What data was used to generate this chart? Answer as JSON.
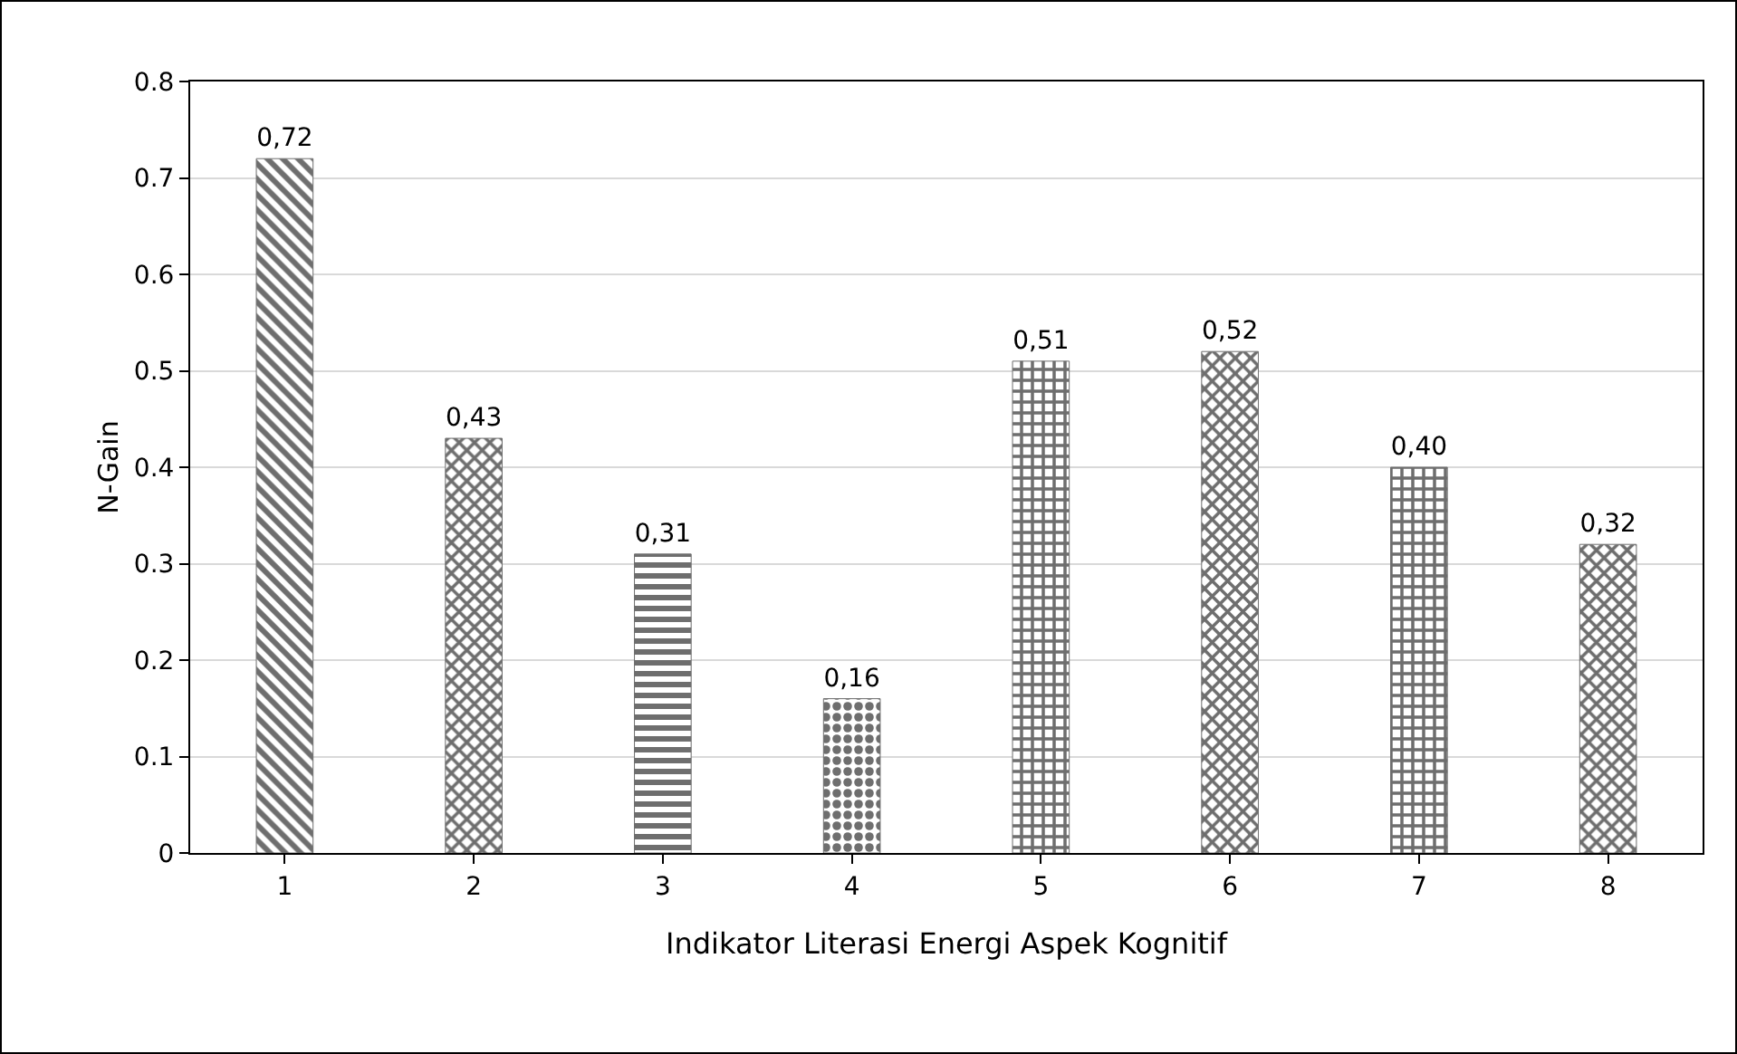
{
  "chart_data": {
    "type": "bar",
    "xlabel": "Indikator Literasi Energi Aspek Kognitif",
    "ylabel": "N-Gain",
    "categories": [
      "1",
      "2",
      "3",
      "4",
      "5",
      "6",
      "7",
      "8"
    ],
    "values": [
      0.72,
      0.43,
      0.31,
      0.16,
      0.51,
      0.52,
      0.4,
      0.32
    ],
    "value_labels": [
      "0,72",
      "0,43",
      "0,31",
      "0,16",
      "0,51",
      "0,52",
      "0,40",
      "0,32"
    ],
    "color": "#6e6e6e",
    "ylim": [
      0,
      0.8
    ],
    "yticks": [
      0,
      0.1,
      0.2,
      0.3,
      0.4,
      0.5,
      0.6,
      0.7,
      0.8
    ],
    "grid": "y",
    "legend": false
  }
}
